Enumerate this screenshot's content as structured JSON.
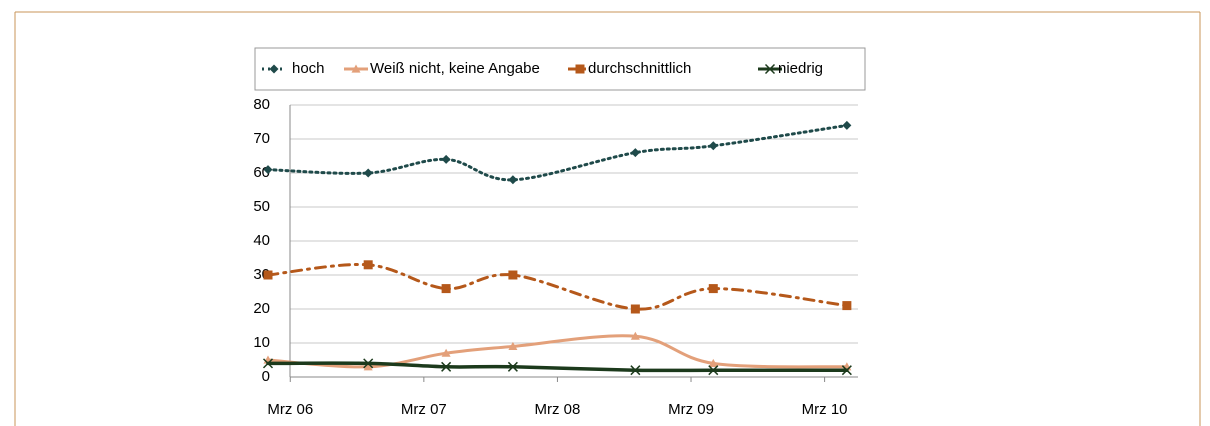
{
  "chart_data": {
    "type": "line",
    "x": [
      "2006-01",
      "2006-10",
      "2007-05",
      "2007-11",
      "2008-10",
      "2009-05",
      "2010-05"
    ],
    "xlim": [
      "2006-01",
      "2010-06"
    ],
    "xticks": [
      {
        "value": "2006-03",
        "label": "Mrz 06"
      },
      {
        "value": "2007-03",
        "label": "Mrz 07"
      },
      {
        "value": "2008-03",
        "label": "Mrz 08"
      },
      {
        "value": "2009-03",
        "label": "Mrz 09"
      },
      {
        "value": "2010-03",
        "label": "Mrz 10"
      }
    ],
    "ylim": [
      0,
      80
    ],
    "yticks": [
      0,
      10,
      20,
      30,
      40,
      50,
      60,
      70,
      80
    ],
    "grid": true,
    "legend": "top",
    "series": [
      {
        "name": "hoch",
        "color": "#1f4a4a",
        "style": "dotted",
        "marker": "diamond",
        "values": [
          61,
          60,
          64,
          58,
          66,
          68,
          74
        ]
      },
      {
        "name": "Weiß nicht, keine Angabe",
        "color": "#e3a07a",
        "style": "solid",
        "marker": "triangle",
        "values": [
          5,
          3,
          7,
          9,
          12,
          4,
          3
        ]
      },
      {
        "name": "durchschnittlich",
        "color": "#b5581a",
        "style": "dashdot",
        "marker": "square",
        "values": [
          30,
          33,
          26,
          30,
          20,
          26,
          21
        ]
      },
      {
        "name": "niedrig",
        "color": "#1c3a1c",
        "style": "solid",
        "marker": "x",
        "values": [
          4,
          4,
          3,
          3,
          2,
          2,
          2
        ]
      }
    ]
  }
}
